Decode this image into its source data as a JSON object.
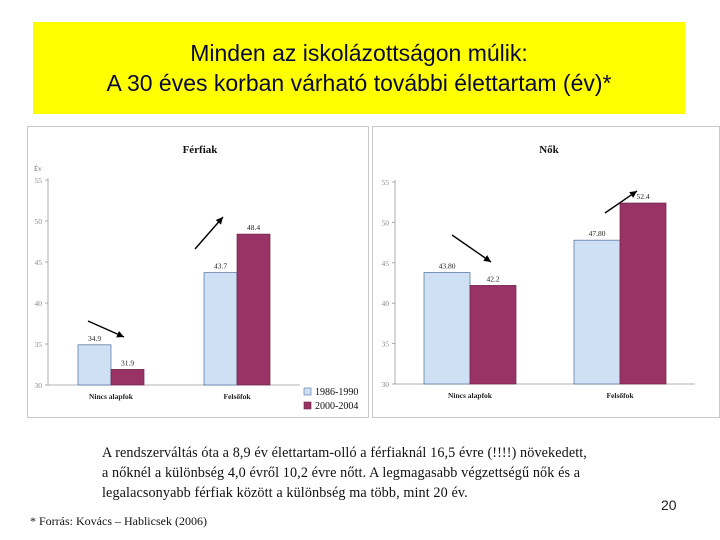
{
  "title": {
    "line1": "Minden az iskolázottságon múlik:",
    "line2": "A 30 éves korban várható további élettartam (év)*"
  },
  "colors": {
    "title_background": "#ffff00",
    "series_1986_1990": "#cfe0f5",
    "series_2000_2004": "#993366"
  },
  "chart_data": [
    {
      "type": "bar",
      "title": "Férfiak",
      "ylabel": "Év",
      "ylim": [
        30,
        55
      ],
      "yticks": [
        30,
        35,
        40,
        45,
        50,
        55
      ],
      "categories": [
        "Nincs alapfok",
        "Felsőfok"
      ],
      "series": [
        {
          "name": "1986-1990",
          "values": [
            34.9,
            43.7
          ],
          "labels": [
            "34.9",
            "43.7"
          ]
        },
        {
          "name": "2000-2004",
          "values": [
            31.9,
            48.4
          ],
          "labels": [
            "31.9",
            "48.4"
          ]
        }
      ],
      "legend": {
        "position": "bottom-right",
        "entries": [
          "1986-1990",
          "2000-2004"
        ]
      },
      "grid": false
    },
    {
      "type": "bar",
      "title": "Nők",
      "ylim": [
        30,
        55
      ],
      "yticks": [
        30,
        35,
        40,
        45,
        50,
        55
      ],
      "categories": [
        "Nincs alapfok",
        "Felsőfok"
      ],
      "series": [
        {
          "name": "1986-1990",
          "values": [
            43.8,
            47.8
          ],
          "labels": [
            "43.80",
            "47.80"
          ]
        },
        {
          "name": "2000-2004",
          "values": [
            42.2,
            52.4
          ],
          "labels": [
            "42.2",
            "52.4"
          ]
        }
      ],
      "grid": false
    }
  ],
  "caption": {
    "line1": "A rendszerváltás óta a 8,9 év élettartam-olló a férfiaknál 16,5 évre (!!!!) növekedett,",
    "line2": "a nőknél a különbség 4,0 évről  10,2 évre nőtt. A legmagasabb végzettségű nők és a",
    "line3": "legalacsonyabb férfiak között a különbség ma több, mint 20 év."
  },
  "page_number": "20",
  "source": "* Forrás: Kovács – Hablicsek (2006)"
}
